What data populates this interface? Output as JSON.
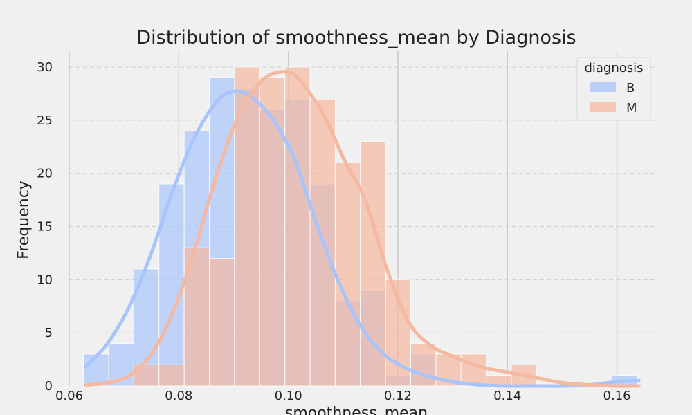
{
  "chart_data": {
    "type": "bar",
    "title": "Distribution of smoothness_mean by Diagnosis",
    "xlabel": "smoothness_mean",
    "ylabel": "Frequency",
    "xlim": [
      0.06,
      0.167
    ],
    "ylim": [
      0,
      31.5
    ],
    "xticks": [
      0.06,
      0.08,
      0.1,
      0.12,
      0.14,
      0.16
    ],
    "xtick_labels": [
      "0.06",
      "0.08",
      "0.10",
      "0.12",
      "0.14",
      "0.16"
    ],
    "yticks": [
      0,
      5,
      10,
      15,
      20,
      25,
      30
    ],
    "ytick_labels": [
      "0",
      "5",
      "10",
      "15",
      "20",
      "25",
      "30"
    ],
    "bin_edges": [
      0.06261,
      0.0672,
      0.0718,
      0.07639,
      0.08099,
      0.08558,
      0.09018,
      0.09477,
      0.09937,
      0.10396,
      0.10856,
      0.11315,
      0.11775,
      0.12234,
      0.12694,
      0.13153,
      0.13613,
      0.14072,
      0.14532,
      0.14991,
      0.15451,
      0.1591,
      0.1637
    ],
    "legend": {
      "title": "diagnosis",
      "position": "top-right"
    },
    "grid": true,
    "series": [
      {
        "name": "B",
        "color": "#a9c4fb",
        "values": [
          3,
          4,
          11,
          19,
          24,
          29,
          28,
          26,
          27,
          19,
          8,
          9,
          1,
          3,
          0,
          0,
          0,
          0,
          0,
          0,
          0,
          1
        ],
        "kde_x": [
          0.063,
          0.067,
          0.071,
          0.075,
          0.079,
          0.083,
          0.087,
          0.09,
          0.093,
          0.097,
          0.101,
          0.105,
          0.109,
          0.113,
          0.117,
          0.121,
          0.125,
          0.13,
          0.135,
          0.14,
          0.145,
          0.15,
          0.155,
          0.16,
          0.164
        ],
        "kde_y": [
          1.8,
          4.0,
          7.5,
          12.5,
          18.5,
          23.5,
          26.8,
          27.7,
          27.3,
          25.2,
          21.5,
          15.5,
          10.0,
          5.8,
          3.2,
          1.8,
          1.0,
          0.4,
          0.1,
          0.0,
          0.0,
          0.0,
          0.1,
          0.4,
          0.5
        ]
      },
      {
        "name": "M",
        "color": "#f5b8a0",
        "values": [
          0,
          0,
          2,
          2,
          13,
          12,
          30,
          29,
          30,
          27,
          21,
          23,
          10,
          4,
          3,
          3,
          1,
          2,
          0,
          0,
          0,
          0
        ],
        "kde_x": [
          0.063,
          0.067,
          0.071,
          0.075,
          0.079,
          0.083,
          0.087,
          0.091,
          0.095,
          0.098,
          0.101,
          0.104,
          0.107,
          0.11,
          0.114,
          0.118,
          0.122,
          0.126,
          0.13,
          0.135,
          0.14,
          0.145,
          0.15,
          0.155,
          0.16,
          0.164
        ],
        "kde_y": [
          0.1,
          0.3,
          1.0,
          3.0,
          7.0,
          13.0,
          20.0,
          25.5,
          28.6,
          29.5,
          29.3,
          27.5,
          25.0,
          21.5,
          17.5,
          11.0,
          6.0,
          3.8,
          2.8,
          1.8,
          1.3,
          0.8,
          0.3,
          0.1,
          0.0,
          0.0
        ]
      }
    ]
  }
}
